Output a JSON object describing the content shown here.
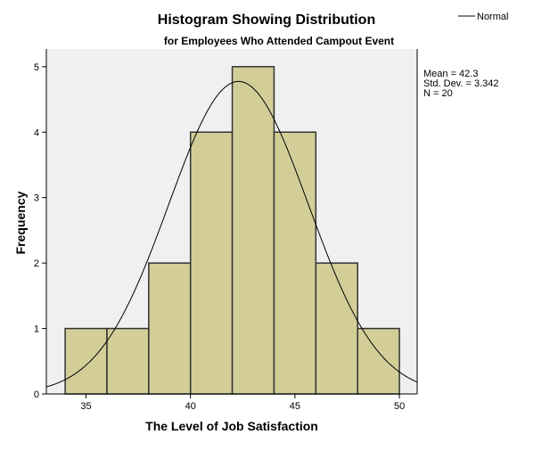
{
  "chart_data": {
    "type": "bar",
    "title": "Histogram Showing Distribution",
    "subtitle": "for Employees Who Attended Campout Event",
    "xlabel": "The Level of Job Satisfaction",
    "ylabel": "Frequency",
    "xlim": [
      33.1,
      50.85
    ],
    "ylim": [
      0,
      5.27
    ],
    "xticks": [
      35,
      40,
      45,
      50
    ],
    "yticks": [
      0,
      1,
      2,
      3,
      4,
      5
    ],
    "bins": [
      {
        "from": 34,
        "to": 36,
        "count": 1
      },
      {
        "from": 36,
        "to": 38,
        "count": 1
      },
      {
        "from": 38,
        "to": 40,
        "count": 2
      },
      {
        "from": 40,
        "to": 42,
        "count": 4
      },
      {
        "from": 42,
        "to": 44,
        "count": 5
      },
      {
        "from": 44,
        "to": 46,
        "count": 4
      },
      {
        "from": 46,
        "to": 48,
        "count": 2
      },
      {
        "from": 48,
        "to": 50,
        "count": 1
      }
    ],
    "normal_curve": {
      "mean": 42.3,
      "sd": 3.342,
      "n": 20,
      "bin_width": 2
    },
    "legend": {
      "label": "Normal",
      "placement": "top-right"
    },
    "stats": [
      "Mean = 42.3",
      "Std. Dev. = 3.342",
      "N = 20"
    ],
    "grid": false,
    "colors": {
      "bar": "#d3ce98",
      "plot_bg": "#f0f0f0",
      "stroke": "#000000"
    }
  }
}
